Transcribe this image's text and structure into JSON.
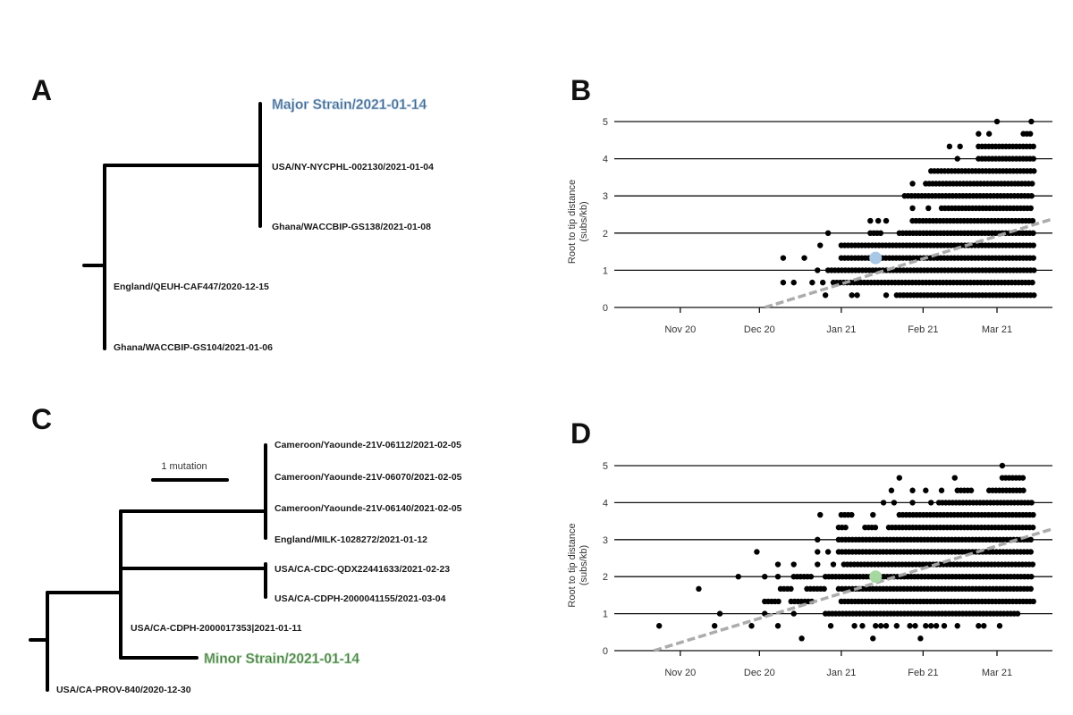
{
  "panels": {
    "a": "A",
    "b": "B",
    "c": "C",
    "d": "D"
  },
  "colors": {
    "major_strain": "#a9c8e6",
    "minor_strain": "#a6d9a2",
    "regression": "#a8a8a8",
    "points": "#000000"
  },
  "tree_a": {
    "highlight_label": "Major Strain/2021-01-14",
    "leaves": [
      "USA/NY-NYCPHL-002130/2021-01-04",
      "Ghana/WACCBIP-GS138/2021-01-08",
      "England/QEUH-CAF447/2020-12-15",
      "Ghana/WACCBIP-GS104/2021-01-06"
    ]
  },
  "tree_c": {
    "scale_label": "1 mutation",
    "highlight_label": "Minor Strain/2021-01-14",
    "leaves": [
      "Cameroon/Yaounde-21V-06112/2021-02-05",
      "Cameroon/Yaounde-21V-06070/2021-02-05",
      "Cameroon/Yaounde-21V-06140/2021-02-05",
      "England/MILK-1028272/2021-01-12",
      "USA/CA-CDC-QDX22441633/2021-02-23",
      "USA/CA-CDPH-2000041155/2021-03-04",
      "USA/CA-CDPH-2000017353|2021-01-11",
      "USA/CA-PROV-840/2020-12-30"
    ]
  },
  "chart_data": [
    {
      "panel": "B",
      "type": "scatter",
      "ylabel": [
        "Root to tip distance",
        "(subs/kb)"
      ],
      "xlim": [
        "2020-10-07",
        "2021-03-22"
      ],
      "ylim": [
        0,
        5
      ],
      "yticks": [
        0,
        1,
        2,
        3,
        4,
        5
      ],
      "xticks": [
        {
          "date": "2020-11-01",
          "label": "Nov 20"
        },
        {
          "date": "2020-12-01",
          "label": "Dec 20"
        },
        {
          "date": "2021-01-01",
          "label": "Jan 21"
        },
        {
          "date": "2021-02-01",
          "label": "Feb 21"
        },
        {
          "date": "2021-03-01",
          "label": "Mar 21"
        }
      ],
      "grid": "horizontal",
      "highlight": {
        "date": "2021-01-14",
        "y": 1.33,
        "color": "#a9c8e6"
      },
      "regression": {
        "from": [
          "2020-12-03",
          0
        ],
        "to": [
          "2021-03-22",
          2.38
        ],
        "style": "dashed",
        "color": "#a8a8a8"
      },
      "rows": [
        {
          "y": 0.33,
          "points": [
            "2020-12-26",
            "2021-01-05",
            "2021-01-07",
            "2021-01-18"
          ],
          "runs": [
            [
              "2021-01-22",
              "2021-03-15"
            ]
          ]
        },
        {
          "y": 0.67,
          "points": [
            "2020-12-10",
            "2020-12-14",
            "2020-12-21",
            "2020-12-25"
          ],
          "runs": [
            [
              "2020-12-29",
              "2021-03-15"
            ]
          ]
        },
        {
          "y": 1.0,
          "points": [
            "2020-12-23"
          ],
          "runs": [
            [
              "2020-12-27",
              "2021-03-15"
            ]
          ]
        },
        {
          "y": 1.33,
          "points": [
            "2020-12-10",
            "2020-12-18"
          ],
          "runs": [
            [
              "2021-01-01",
              "2021-03-15"
            ]
          ]
        },
        {
          "y": 1.67,
          "points": [
            "2020-12-24"
          ],
          "runs": [
            [
              "2021-01-01",
              "2021-03-15"
            ]
          ]
        },
        {
          "y": 2.0,
          "points": [
            "2020-12-27"
          ],
          "runs": [
            [
              "2021-01-12",
              "2021-01-17"
            ],
            [
              "2021-01-23",
              "2021-03-15"
            ]
          ]
        },
        {
          "y": 2.33,
          "points": [
            "2021-01-12",
            "2021-01-15",
            "2021-01-18"
          ],
          "runs": [
            [
              "2021-01-28",
              "2021-03-15"
            ]
          ]
        },
        {
          "y": 2.67,
          "points": [
            "2021-01-28",
            "2021-02-03"
          ],
          "runs": [
            [
              "2021-02-08",
              "2021-03-15"
            ]
          ]
        },
        {
          "y": 3.0,
          "points": [],
          "runs": [
            [
              "2021-01-25",
              "2021-03-15"
            ]
          ]
        },
        {
          "y": 3.33,
          "points": [
            "2021-01-28"
          ],
          "runs": [
            [
              "2021-02-02",
              "2021-03-15"
            ]
          ]
        },
        {
          "y": 3.67,
          "points": [],
          "runs": [
            [
              "2021-02-04",
              "2021-03-15"
            ]
          ]
        },
        {
          "y": 4.0,
          "points": [
            "2021-02-14"
          ],
          "runs": [
            [
              "2021-02-22",
              "2021-03-15"
            ]
          ]
        },
        {
          "y": 4.33,
          "points": [
            "2021-02-11",
            "2021-02-15"
          ],
          "runs": [
            [
              "2021-02-22",
              "2021-03-15"
            ]
          ]
        },
        {
          "y": 4.67,
          "points": [
            "2021-02-22",
            "2021-02-26"
          ],
          "runs": [
            [
              "2021-03-11",
              "2021-03-14"
            ]
          ]
        },
        {
          "y": 5.0,
          "points": [
            "2021-03-01",
            "2021-03-14"
          ],
          "runs": []
        }
      ]
    },
    {
      "panel": "D",
      "type": "scatter",
      "ylabel": [
        "Root to tip distance",
        "(subs/kb)"
      ],
      "xlim": [
        "2020-10-07",
        "2021-03-22"
      ],
      "ylim": [
        0,
        5
      ],
      "yticks": [
        0,
        1,
        2,
        3,
        4,
        5
      ],
      "xticks": [
        {
          "date": "2020-11-01",
          "label": "Nov 20"
        },
        {
          "date": "2020-12-01",
          "label": "Dec 20"
        },
        {
          "date": "2021-01-01",
          "label": "Jan 21"
        },
        {
          "date": "2021-02-01",
          "label": "Feb 21"
        },
        {
          "date": "2021-03-01",
          "label": "Mar 21"
        }
      ],
      "grid": "horizontal",
      "highlight": {
        "date": "2021-01-14",
        "y": 2.0,
        "color": "#a6d9a2"
      },
      "regression": {
        "from": [
          "2020-10-22",
          0
        ],
        "to": [
          "2021-03-22",
          3.29
        ],
        "style": "dashed",
        "color": "#a8a8a8"
      },
      "rows": [
        {
          "y": 0.33,
          "points": [
            "2020-12-17",
            "2021-01-13",
            "2021-01-31"
          ],
          "runs": []
        },
        {
          "y": 0.67,
          "points": [
            "2020-10-24",
            "2020-11-14",
            "2020-11-28",
            "2020-12-08",
            "2020-12-28",
            "2021-01-06",
            "2021-01-09",
            "2021-01-14",
            "2021-01-16",
            "2021-01-18",
            "2021-01-22",
            "2021-01-27",
            "2021-01-29",
            "2021-02-02",
            "2021-02-04",
            "2021-02-06",
            "2021-02-09",
            "2021-02-14",
            "2021-02-22",
            "2021-02-24",
            "2021-03-02"
          ],
          "runs": []
        },
        {
          "y": 1.0,
          "points": [
            "2020-11-16",
            "2020-12-03",
            "2020-12-14"
          ],
          "runs": [
            [
              "2020-12-26",
              "2021-03-09"
            ]
          ]
        },
        {
          "y": 1.33,
          "points": [],
          "runs": [
            [
              "2020-12-03",
              "2020-12-09"
            ],
            [
              "2020-12-13",
              "2020-12-21"
            ],
            [
              "2021-01-01",
              "2021-03-15"
            ]
          ]
        },
        {
          "y": 1.67,
          "points": [
            "2020-11-08"
          ],
          "runs": [
            [
              "2020-12-09",
              "2020-12-14"
            ],
            [
              "2020-12-19",
              "2020-12-26"
            ],
            [
              "2020-12-31",
              "2021-03-15"
            ]
          ]
        },
        {
          "y": 2.0,
          "points": [
            "2020-11-23",
            "2020-12-03",
            "2020-12-08"
          ],
          "runs": [
            [
              "2020-12-14",
              "2020-12-21"
            ],
            [
              "2020-12-26",
              "2021-03-15"
            ]
          ]
        },
        {
          "y": 2.33,
          "points": [
            "2020-12-08",
            "2020-12-14",
            "2020-12-23",
            "2020-12-29"
          ],
          "runs": [
            [
              "2021-01-02",
              "2021-03-15"
            ]
          ]
        },
        {
          "y": 2.67,
          "points": [
            "2020-11-30",
            "2020-12-23",
            "2020-12-27"
          ],
          "runs": [
            [
              "2020-12-31",
              "2021-03-15"
            ]
          ]
        },
        {
          "y": 3.0,
          "points": [
            "2020-12-23"
          ],
          "runs": [
            [
              "2020-12-31",
              "2021-03-15"
            ]
          ]
        },
        {
          "y": 3.33,
          "points": [],
          "runs": [
            [
              "2020-12-31",
              "2021-01-03"
            ],
            [
              "2021-01-10",
              "2021-01-15"
            ],
            [
              "2021-01-19",
              "2021-03-15"
            ]
          ]
        },
        {
          "y": 3.67,
          "points": [
            "2020-12-24",
            "2021-01-13"
          ],
          "runs": [
            [
              "2021-01-01",
              "2021-01-06"
            ],
            [
              "2021-01-23",
              "2021-03-15"
            ]
          ]
        },
        {
          "y": 4.0,
          "points": [
            "2021-01-17",
            "2021-01-21",
            "2021-01-28",
            "2021-02-04"
          ],
          "runs": [
            [
              "2021-02-07",
              "2021-03-15"
            ]
          ]
        },
        {
          "y": 4.33,
          "points": [
            "2021-01-20",
            "2021-01-28",
            "2021-02-02",
            "2021-02-08"
          ],
          "runs": [
            [
              "2021-02-14",
              "2021-02-20"
            ],
            [
              "2021-02-26",
              "2021-03-11"
            ]
          ]
        },
        {
          "y": 4.67,
          "points": [
            "2021-01-23",
            "2021-02-13"
          ],
          "runs": [
            [
              "2021-03-03",
              "2021-03-11"
            ]
          ]
        },
        {
          "y": 5.0,
          "points": [
            "2021-03-03"
          ],
          "runs": []
        }
      ]
    }
  ]
}
